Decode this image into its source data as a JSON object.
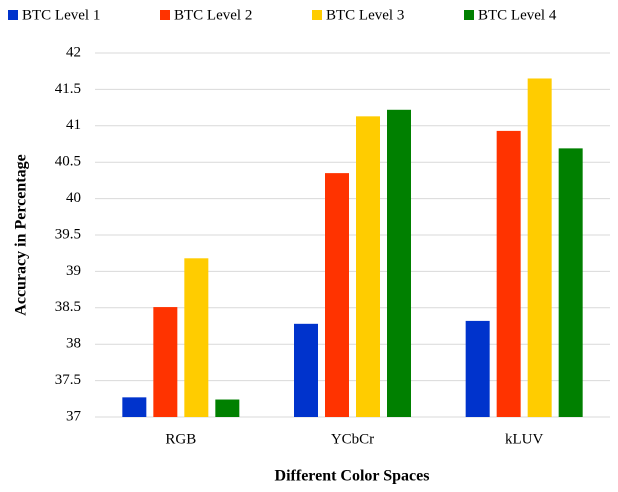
{
  "chart_data": {
    "type": "bar",
    "x_label": "Different Color Spaces",
    "y_label": "Accuracy in Percentage",
    "categories": [
      "RGB",
      "YCbCr",
      "kLUV"
    ],
    "series": [
      {
        "name": "BTC Level 1",
        "color": "#0033cc",
        "values": [
          37.27,
          38.28,
          38.32
        ]
      },
      {
        "name": "BTC Level 2",
        "color": "#ff3300",
        "values": [
          38.51,
          40.35,
          40.93
        ]
      },
      {
        "name": "BTC Level 3",
        "color": "#ffcc00",
        "values": [
          39.18,
          41.13,
          41.65
        ]
      },
      {
        "name": "BTC Level 4",
        "color": "#008000",
        "values": [
          37.24,
          41.22,
          40.69
        ]
      }
    ],
    "ylim": [
      37,
      42
    ],
    "yticks": [
      37,
      37.5,
      38,
      38.5,
      39,
      39.5,
      40,
      40.5,
      41,
      41.5,
      42
    ],
    "grid": true,
    "legend": "top"
  }
}
